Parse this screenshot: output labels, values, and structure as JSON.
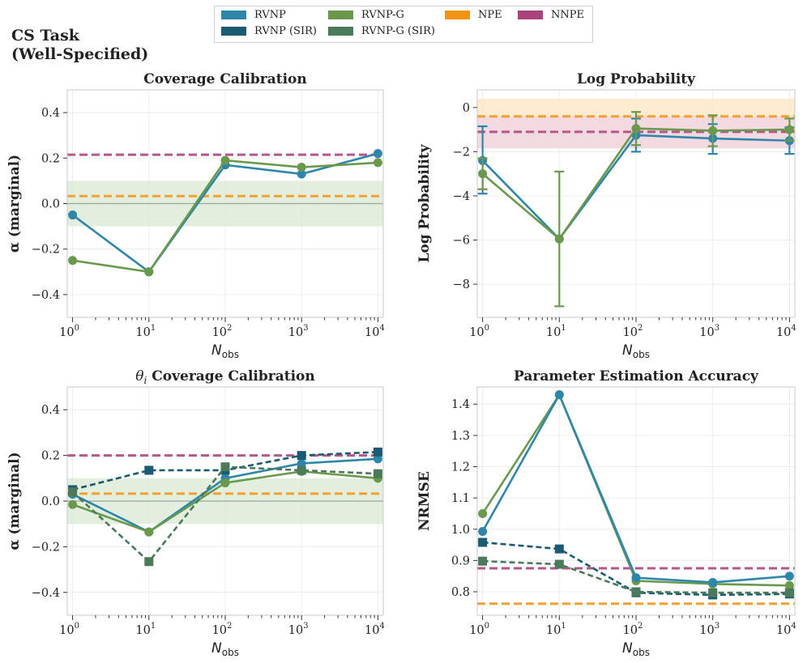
{
  "figure": {
    "title_lines": [
      "CS Task",
      "(Well-Specified)"
    ]
  },
  "colors": {
    "RVNP": "#2e86ab",
    "RVNP (SIR)": "#1b5a73",
    "RVNP-G": "#6a994e",
    "RVNP-G (SIR)": "#4a7a5a",
    "NPE": "#f4a030",
    "NNPE": "#b5578a",
    "ideal_band": "#d9ead3",
    "npe_band": "#fde7c4",
    "nnpe_band": "#f0d4e4"
  },
  "legend": {
    "items": [
      {
        "label": "RVNP",
        "color": "#2e86ab"
      },
      {
        "label": "RVNP (SIR)",
        "color": "#1b5a73"
      },
      {
        "label": "RVNP-G",
        "color": "#6a994e"
      },
      {
        "label": "RVNP-G (SIR)",
        "color": "#4a7a5a"
      },
      {
        "label": "NPE",
        "color": "#f29312"
      },
      {
        "label": "NNPE",
        "color": "#a8447a"
      }
    ]
  },
  "chart_data": [
    {
      "id": "coverage",
      "type": "line",
      "title": "Coverage Calibration",
      "xlabel": "N_obs",
      "ylabel": "α (marginal)",
      "xscale": "log",
      "x": [
        1,
        10,
        100,
        1000,
        10000
      ],
      "x_tick_labels": [
        "10^0",
        "10^1",
        "10^2",
        "10^3",
        "10^4"
      ],
      "ylim": [
        -0.5,
        0.5
      ],
      "yticks": [
        0.4,
        0.2,
        0.0,
        -0.2,
        -0.4
      ],
      "y_tick_labels": [
        "0.4",
        "0.2",
        "0.0",
        "−0.2",
        "−0.4"
      ],
      "band": {
        "y0": -0.1,
        "y1": 0.1
      },
      "zero_line": 0.0,
      "hlines": [
        {
          "name": "NNPE",
          "y": 0.215
        },
        {
          "name": "NPE",
          "y": 0.033
        }
      ],
      "series": [
        {
          "name": "RVNP",
          "values": [
            -0.05,
            -0.3,
            0.17,
            0.13,
            0.22
          ],
          "marker": "circle",
          "dash": false
        },
        {
          "name": "RVNP-G",
          "values": [
            -0.25,
            -0.3,
            0.19,
            0.16,
            0.18
          ],
          "marker": "circle",
          "dash": false
        }
      ]
    },
    {
      "id": "logprob",
      "type": "line",
      "title": "Log Probability",
      "xlabel": "N_obs",
      "ylabel": "Log Probability",
      "xscale": "log",
      "x": [
        1,
        10,
        100,
        1000,
        10000
      ],
      "x_tick_labels": [
        "10^0",
        "10^1",
        "10^2",
        "10^3",
        "10^4"
      ],
      "ylim": [
        -9.5,
        0.8
      ],
      "yticks": [
        0,
        -2,
        -4,
        -6,
        -8
      ],
      "y_tick_labels": [
        "0",
        "−2",
        "−4",
        "−6",
        "−8"
      ],
      "hbands": [
        {
          "name": "NPE",
          "y0": -1.85,
          "y1": 0.4
        },
        {
          "name": "NNPE",
          "y0": -1.85,
          "y1": -0.4
        }
      ],
      "hlines": [
        {
          "name": "NPE",
          "y": -0.4
        },
        {
          "name": "NNPE",
          "y": -1.1
        }
      ],
      "series": [
        {
          "name": "RVNP",
          "values": [
            -2.4,
            -5.95,
            -1.25,
            -1.4,
            -1.5
          ],
          "err_low": [
            -3.9,
            -5.95,
            -2.0,
            -2.1,
            -2.1
          ],
          "err_high": [
            -0.85,
            -5.95,
            -0.5,
            -0.75,
            -0.9
          ],
          "marker": "circle",
          "dash": false
        },
        {
          "name": "RVNP-G",
          "values": [
            -3.0,
            -5.95,
            -0.95,
            -1.05,
            -1.0
          ],
          "err_low": [
            -3.7,
            -9.0,
            -1.7,
            -1.75,
            -1.5
          ],
          "err_high": [
            -2.3,
            -2.9,
            -0.2,
            -0.35,
            -0.5
          ],
          "marker": "circle",
          "dash": false
        }
      ]
    },
    {
      "id": "theta_coverage",
      "type": "line",
      "title": "θ_i Coverage Calibration",
      "xlabel": "N_obs",
      "ylabel": "α (marginal)",
      "xscale": "log",
      "x": [
        1,
        10,
        100,
        1000,
        10000
      ],
      "x_tick_labels": [
        "10^0",
        "10^1",
        "10^2",
        "10^3",
        "10^4"
      ],
      "ylim": [
        -0.5,
        0.5
      ],
      "yticks": [
        0.4,
        0.2,
        0.0,
        -0.2,
        -0.4
      ],
      "y_tick_labels": [
        "0.4",
        "0.2",
        "0.0",
        "−0.2",
        "−0.4"
      ],
      "band": {
        "y0": -0.1,
        "y1": 0.1
      },
      "zero_line": 0.0,
      "hlines": [
        {
          "name": "NNPE",
          "y": 0.2
        },
        {
          "name": "NPE",
          "y": 0.033
        }
      ],
      "series": [
        {
          "name": "RVNP",
          "values": [
            0.03,
            -0.135,
            0.1,
            0.165,
            0.185
          ],
          "marker": "circle",
          "dash": false
        },
        {
          "name": "RVNP-G",
          "values": [
            -0.015,
            -0.135,
            0.08,
            0.13,
            0.1
          ],
          "marker": "circle",
          "dash": false
        },
        {
          "name": "RVNP (SIR)",
          "values": [
            0.05,
            0.135,
            0.135,
            0.2,
            0.215
          ],
          "marker": "square",
          "dash": true
        },
        {
          "name": "RVNP-G (SIR)",
          "values": [
            0.04,
            -0.265,
            0.15,
            0.135,
            0.12
          ],
          "marker": "square",
          "dash": true
        }
      ]
    },
    {
      "id": "nrmse",
      "type": "line",
      "title": "Parameter Estimation Accuracy",
      "xlabel": "N_obs",
      "ylabel": "NRMSE",
      "xscale": "log",
      "x": [
        1,
        10,
        100,
        1000,
        10000
      ],
      "x_tick_labels": [
        "10^0",
        "10^1",
        "10^2",
        "10^3",
        "10^4"
      ],
      "ylim": [
        0.725,
        1.455
      ],
      "yticks": [
        1.4,
        1.3,
        1.2,
        1.1,
        1.0,
        0.9,
        0.8
      ],
      "y_tick_labels": [
        "1.4",
        "1.3",
        "1.2",
        "1.1",
        "1.0",
        "0.9",
        "0.8"
      ],
      "hlines": [
        {
          "name": "NNPE",
          "y": 0.875
        },
        {
          "name": "NPE",
          "y": 0.762
        }
      ],
      "series": [
        {
          "name": "RVNP-G",
          "values": [
            1.05,
            1.43,
            0.835,
            0.825,
            0.82
          ],
          "marker": "circle",
          "dash": false
        },
        {
          "name": "RVNP",
          "values": [
            0.993,
            1.43,
            0.845,
            0.83,
            0.85
          ],
          "marker": "circle",
          "dash": false
        },
        {
          "name": "RVNP (SIR)",
          "values": [
            0.958,
            0.937,
            0.797,
            0.79,
            0.793
          ],
          "marker": "square",
          "dash": true
        },
        {
          "name": "RVNP-G (SIR)",
          "values": [
            0.898,
            0.888,
            0.8,
            0.797,
            0.797
          ],
          "marker": "square",
          "dash": true
        }
      ]
    }
  ]
}
